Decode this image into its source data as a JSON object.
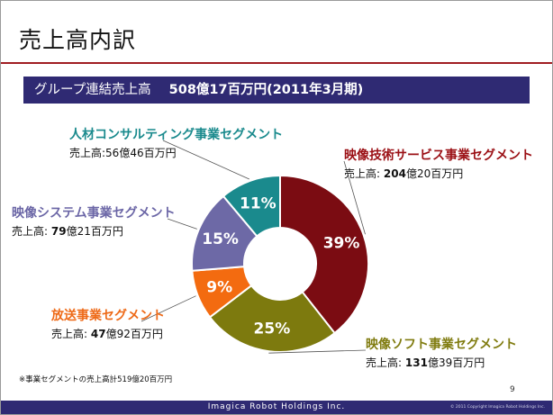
{
  "slide": {
    "title": "売上高内訳",
    "banner_prefix": "グループ連結売上高",
    "banner_value": "508億17百万円(2011年3月期)",
    "note": "※事業セグメントの売上高計519億20百万円",
    "page_number": "9",
    "footer_brand": "Imagica Robot Holdings Inc.",
    "footer_copyright": "© 2011 Copyright Imagica Robot Holdings Inc."
  },
  "chart_data": {
    "type": "pie",
    "donut": true,
    "start_angle_deg": 0,
    "direction": "clockwise",
    "slices": [
      {
        "label": "映像技術サービス事業セグメント",
        "percent": 39,
        "value_label": "39%",
        "sales_prefix": "売上高:",
        "sales_bold": "204",
        "sales_rest": "億20百万円",
        "color": "#7b0c12",
        "label_color": "#9b1015"
      },
      {
        "label": "映像ソフト事業セグメント",
        "percent": 25,
        "value_label": "25%",
        "sales_prefix": "売上高:",
        "sales_bold": "131",
        "sales_rest": "億39百万円",
        "color": "#7d7a0e",
        "label_color": "#807c10"
      },
      {
        "label": "放送事業セグメント",
        "percent": 9,
        "value_label": "9%",
        "sales_prefix": "売上高:",
        "sales_bold": "47",
        "sales_rest": "億92百万円",
        "color": "#f36b10",
        "label_color": "#ee6a18"
      },
      {
        "label": "映像システム事業セグメント",
        "percent": 15,
        "value_label": "15%",
        "sales_prefix": "売上高:",
        "sales_bold": "79",
        "sales_rest": "億21百万円",
        "color": "#6d69a6",
        "label_color": "#6b66a6"
      },
      {
        "label": "人材コンサルティング事業セグメント",
        "percent": 11,
        "value_label": "11%",
        "sales_prefix": "売上高:",
        "sales_bold": "",
        "sales_rest": "56億46百万円",
        "color": "#1a8a8d",
        "label_color": "#1a8a8d"
      }
    ]
  }
}
